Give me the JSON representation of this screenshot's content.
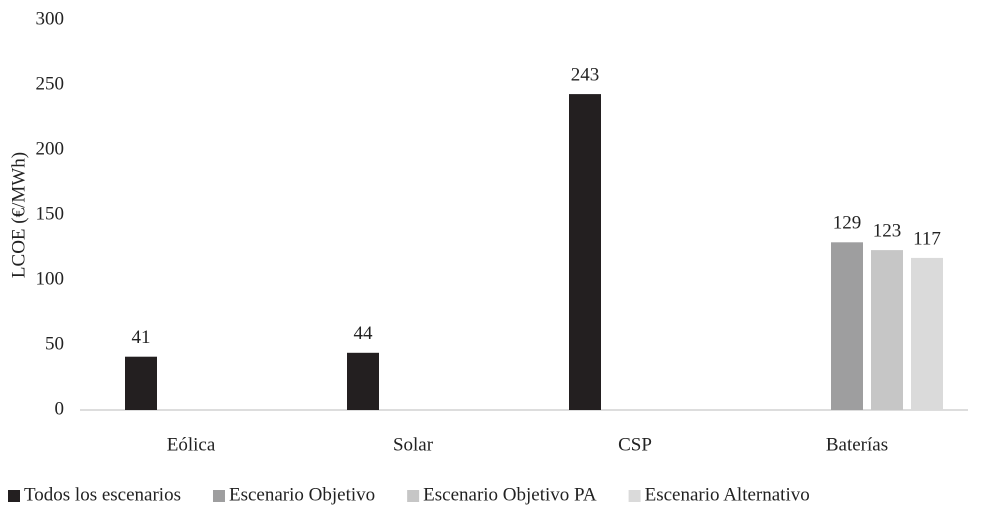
{
  "chart_data": {
    "type": "bar",
    "y_label": "LCOE (€/MWh)",
    "categories": [
      "Eólica",
      "Solar",
      "CSP",
      "Baterías"
    ],
    "series": [
      {
        "name": "Todos los escenarios",
        "color": "#231f20",
        "values": [
          41,
          44,
          243,
          null
        ]
      },
      {
        "name": "Escenario Objetivo",
        "color": "#9e9e9f",
        "values": [
          null,
          null,
          null,
          129
        ]
      },
      {
        "name": "Escenario Objetivo PA",
        "color": "#c6c6c6",
        "values": [
          null,
          null,
          null,
          123
        ]
      },
      {
        "name": "Escenario Alternativo",
        "color": "#dadada",
        "values": [
          null,
          null,
          null,
          117
        ]
      }
    ],
    "ylim": [
      0,
      300
    ],
    "yticks": [
      0,
      50,
      100,
      150,
      200,
      250,
      300
    ],
    "legend": "bottom"
  }
}
